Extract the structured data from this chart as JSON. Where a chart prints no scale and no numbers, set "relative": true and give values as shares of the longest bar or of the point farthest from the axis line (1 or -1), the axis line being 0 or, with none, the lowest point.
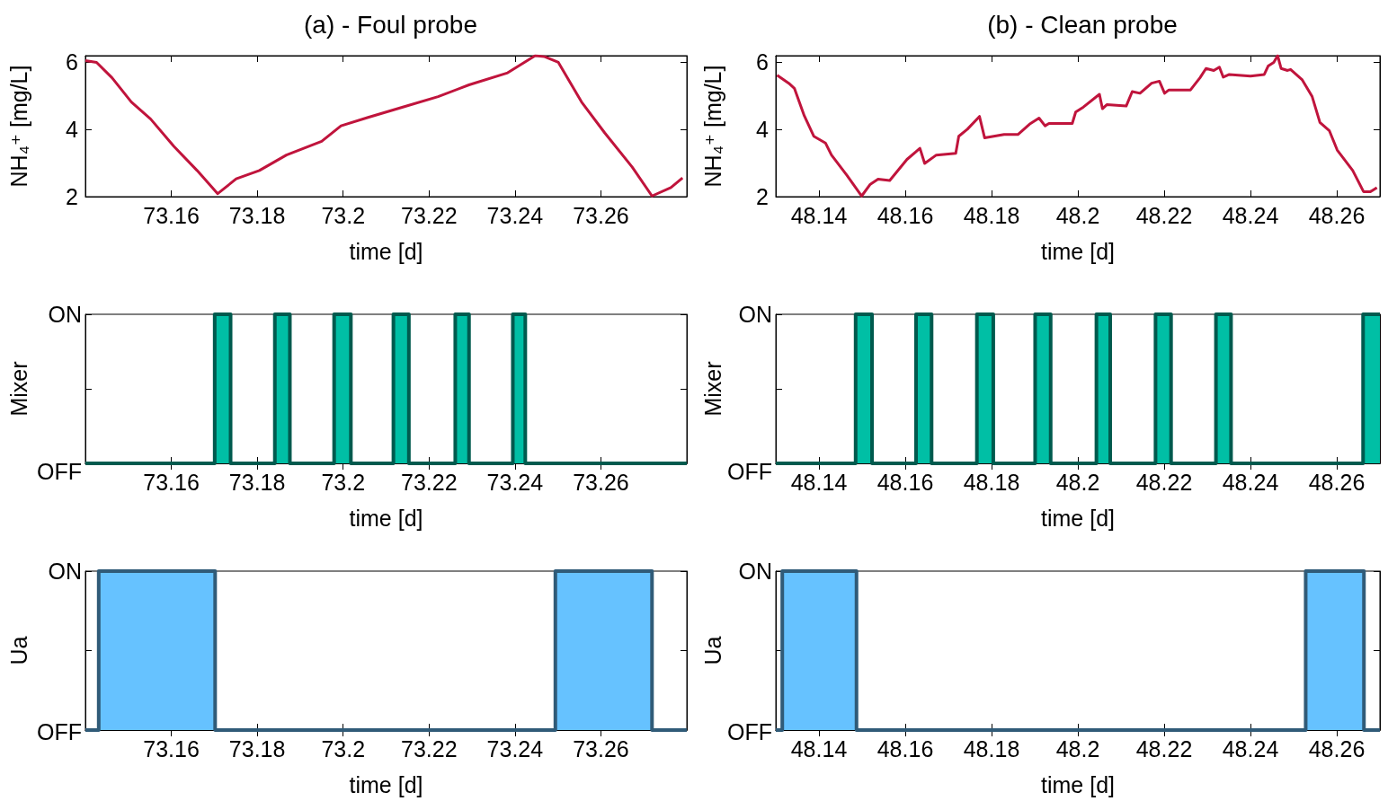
{
  "chart_data": [
    {
      "type": "line",
      "title": "(a) - Foul probe",
      "xlabel": "time [d]",
      "ylabel": "NH₄⁺ [mg/L]",
      "xlim": [
        73.14,
        73.28
      ],
      "xticks": [
        73.16,
        73.18,
        73.2,
        73.22,
        73.24,
        73.26
      ],
      "ylim": [
        2,
        6.2
      ],
      "yticks": [
        2,
        4,
        6
      ],
      "series": [
        {
          "color": "#c0143c",
          "x": [
            73.14,
            73.1426,
            73.1462,
            73.1507,
            73.1552,
            73.1606,
            73.166,
            73.1708,
            73.1751,
            73.1805,
            73.1868,
            73.195,
            73.1995,
            73.2058,
            73.2139,
            73.2221,
            73.2293,
            73.2383,
            73.2447,
            73.2469,
            73.2501,
            73.2555,
            73.2609,
            73.2673,
            73.2719,
            73.2763,
            73.279
          ],
          "values": [
            6.05,
            6.0,
            5.54,
            4.82,
            4.31,
            3.5,
            2.78,
            2.09,
            2.53,
            2.78,
            3.24,
            3.65,
            4.11,
            4.36,
            4.67,
            4.98,
            5.33,
            5.69,
            6.2,
            6.17,
            6.0,
            4.82,
            3.9,
            2.88,
            2.02,
            2.27,
            2.56
          ]
        }
      ]
    },
    {
      "type": "line",
      "title": "(b) - Clean probe",
      "xlabel": "time [d]",
      "ylabel": "NH₄⁺ [mg/L]",
      "xlim": [
        48.13,
        48.27
      ],
      "xticks": [
        48.14,
        48.16,
        48.18,
        48.2,
        48.22,
        48.24,
        48.26
      ],
      "ylim": [
        2,
        6.2
      ],
      "yticks": [
        2,
        4,
        6
      ],
      "series": [
        {
          "color": "#c0143c",
          "x": [
            48.1303,
            48.133,
            48.1343,
            48.1366,
            48.1388,
            48.1415,
            48.1429,
            48.1465,
            48.1499,
            48.1519,
            48.1537,
            48.1564,
            48.1604,
            48.1634,
            48.1645,
            48.1672,
            48.1717,
            48.1724,
            48.1744,
            48.1772,
            48.1784,
            48.1829,
            48.1861,
            48.1888,
            48.191,
            48.1924,
            48.1933,
            48.1987,
            48.1995,
            48.2013,
            48.205,
            48.2057,
            48.2067,
            48.2112,
            48.2126,
            48.2144,
            48.2171,
            48.2189,
            48.2201,
            48.2211,
            48.2261,
            48.2283,
            48.2297,
            48.2315,
            48.2328,
            48.2337,
            48.2351,
            48.24,
            48.2432,
            48.2441,
            48.2454,
            48.2463,
            48.2471,
            48.2486,
            48.2493,
            48.252,
            48.2543,
            48.2561,
            48.2583,
            48.2601,
            48.2637,
            48.2662,
            48.2678,
            48.2693
          ],
          "values": [
            5.62,
            5.38,
            5.23,
            4.41,
            3.8,
            3.6,
            3.24,
            2.63,
            2.02,
            2.37,
            2.52,
            2.48,
            3.11,
            3.44,
            2.99,
            3.24,
            3.29,
            3.8,
            4.01,
            4.39,
            3.75,
            3.85,
            3.85,
            4.16,
            4.34,
            4.11,
            4.18,
            4.18,
            4.52,
            4.67,
            5.05,
            4.62,
            4.74,
            4.7,
            5.13,
            5.08,
            5.38,
            5.44,
            5.08,
            5.18,
            5.18,
            5.54,
            5.82,
            5.76,
            5.86,
            5.56,
            5.64,
            5.59,
            5.64,
            5.89,
            6.0,
            6.2,
            5.82,
            5.76,
            5.79,
            5.48,
            4.98,
            4.21,
            3.96,
            3.39,
            2.78,
            2.15,
            2.15,
            2.27
          ]
        }
      ]
    },
    {
      "type": "area",
      "xlabel": "time [d]",
      "ylabel": "Mixer",
      "xlim": [
        73.14,
        73.28
      ],
      "xticks": [
        73.16,
        73.18,
        73.2,
        73.22,
        73.24,
        73.26
      ],
      "relative": true,
      "annotations": [
        "ON",
        "OFF"
      ],
      "series": [
        {
          "color": "#00bfa5",
          "x": [
            73.14,
            73.1701,
            73.1701,
            73.1738,
            73.1738,
            73.1841,
            73.1841,
            73.1876,
            73.1876,
            73.1979,
            73.1979,
            73.2018,
            73.2018,
            73.2117,
            73.2117,
            73.2153,
            73.2153,
            73.2261,
            73.2261,
            73.2293,
            73.2293,
            73.2395,
            73.2395,
            73.2424,
            73.2424,
            73.28
          ],
          "values": [
            0,
            0,
            1,
            1,
            0,
            0,
            1,
            1,
            0,
            0,
            1,
            1,
            0,
            0,
            1,
            1,
            0,
            0,
            1,
            1,
            0,
            0,
            1,
            1,
            0,
            0
          ]
        }
      ]
    },
    {
      "type": "area",
      "xlabel": "time [d]",
      "ylabel": "Mixer",
      "xlim": [
        48.13,
        48.27
      ],
      "xticks": [
        48.14,
        48.16,
        48.18,
        48.2,
        48.22,
        48.24,
        48.26
      ],
      "relative": true,
      "annotations": [
        "ON",
        "OFF"
      ],
      "series": [
        {
          "color": "#00bfa5",
          "x": [
            48.13,
            48.1485,
            48.1485,
            48.1523,
            48.1523,
            48.1625,
            48.1625,
            48.1661,
            48.1661,
            48.1766,
            48.1766,
            48.1804,
            48.1804,
            48.1901,
            48.1901,
            48.1937,
            48.1937,
            48.2043,
            48.2043,
            48.2075,
            48.2075,
            48.218,
            48.218,
            48.2216,
            48.2216,
            48.232,
            48.232,
            48.2355,
            48.2355,
            48.2661,
            48.2661,
            48.27
          ],
          "values": [
            0,
            0,
            1,
            1,
            0,
            0,
            1,
            1,
            0,
            0,
            1,
            1,
            0,
            0,
            1,
            1,
            0,
            0,
            1,
            1,
            0,
            0,
            1,
            1,
            0,
            0,
            1,
            1,
            0,
            0,
            1,
            1
          ]
        }
      ]
    },
    {
      "type": "area",
      "xlabel": "time [d]",
      "ylabel": "Ua",
      "xlim": [
        73.14,
        73.28
      ],
      "xticks": [
        73.16,
        73.18,
        73.2,
        73.22,
        73.24,
        73.26
      ],
      "relative": true,
      "annotations": [
        "ON",
        "OFF"
      ],
      "series": [
        {
          "color": "#66c2ff",
          "x": [
            73.14,
            73.1431,
            73.1431,
            73.1702,
            73.1702,
            73.2494,
            73.2494,
            73.2719,
            73.2719,
            73.28
          ],
          "values": [
            0,
            0,
            1,
            1,
            0,
            0,
            1,
            1,
            0,
            0
          ]
        }
      ]
    },
    {
      "type": "area",
      "xlabel": "time [d]",
      "ylabel": "Ua",
      "xlim": [
        48.13,
        48.27
      ],
      "xticks": [
        48.14,
        48.16,
        48.18,
        48.2,
        48.22,
        48.24,
        48.26
      ],
      "relative": true,
      "annotations": [
        "ON",
        "OFF"
      ],
      "series": [
        {
          "color": "#66c2ff",
          "x": [
            48.13,
            48.1315,
            48.1315,
            48.1487,
            48.1487,
            48.2528,
            48.2528,
            48.2663,
            48.2663,
            48.27
          ],
          "values": [
            0,
            0,
            1,
            1,
            0,
            0,
            1,
            1,
            0,
            0
          ]
        }
      ]
    }
  ]
}
